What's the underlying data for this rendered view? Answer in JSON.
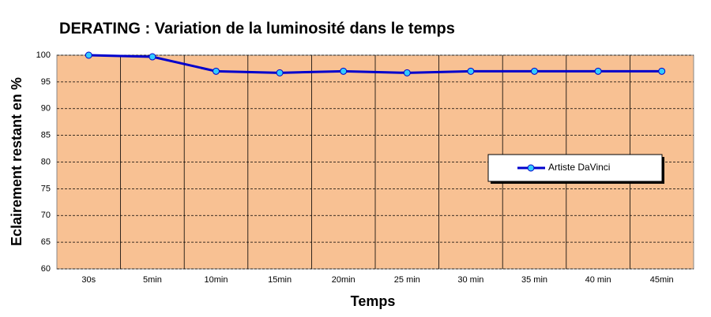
{
  "chart_data": {
    "type": "line",
    "title": "DERATING : Variation de la luminosité dans le temps",
    "x_label": "Temps",
    "y_label": "Eclairement restant en %",
    "categories": [
      "30s",
      "5min",
      "10min",
      "15min",
      "20min",
      "25 min",
      "30 min",
      "35 min",
      "40 min",
      "45min"
    ],
    "series": [
      {
        "name": "Artiste DaVinci",
        "color": "#0000cc",
        "marker_color": "#33ccff",
        "values": [
          100,
          99.7,
          97,
          96.7,
          97,
          96.7,
          97,
          97,
          97,
          97
        ]
      }
    ],
    "ylim": [
      60,
      100
    ],
    "yticks": [
      60,
      65,
      70,
      75,
      80,
      85,
      90,
      95,
      100
    ],
    "grid": true,
    "background": "#f8c193"
  }
}
